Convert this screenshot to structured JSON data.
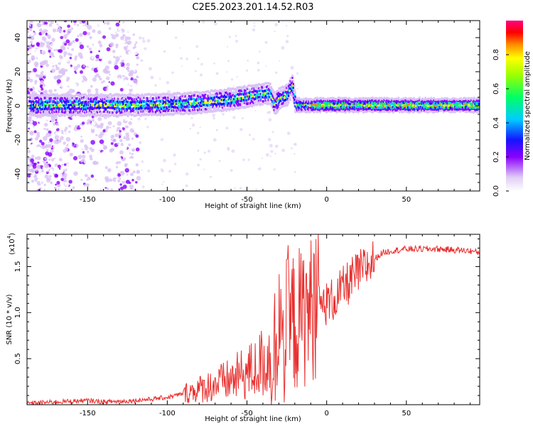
{
  "title": "C2E5.2023.201.14.52.R03",
  "colorbar": {
    "label": "Normalized spectral amplitude",
    "ticks": [
      "0.0",
      "0.2",
      "0.4",
      "0.6",
      "0.8"
    ],
    "tick_values": [
      0.0,
      0.2,
      0.4,
      0.6,
      0.8
    ],
    "range": [
      0,
      1
    ]
  },
  "chart_data": [
    {
      "type": "heatmap",
      "xlabel": "Height of straight line (km)",
      "ylabel": "Frequency (Hz)",
      "xlim": [
        -188,
        96
      ],
      "ylim": [
        -50,
        50
      ],
      "x_ticks": [
        -150,
        -100,
        -50,
        0,
        50
      ],
      "x_tick_labels": [
        "-150",
        "-100",
        "-50",
        "0",
        "50"
      ],
      "y_ticks": [
        -40,
        -20,
        0,
        20,
        40
      ],
      "y_tick_labels": [
        "-40",
        "-20",
        "0",
        "20",
        "40"
      ],
      "ridge": {
        "description_x": [
          -185,
          -150,
          -120,
          -100,
          -80,
          -60,
          -45,
          -36,
          -33,
          -30,
          -25,
          -22,
          -20,
          0,
          50,
          95
        ],
        "frequency_hz": [
          0,
          0,
          0,
          0.5,
          1.5,
          3.5,
          6.0,
          7.0,
          0.5,
          4.0,
          6.0,
          12.0,
          0,
          0,
          0,
          0
        ]
      }
    },
    {
      "type": "line",
      "xlabel": "Height of straight line (km)",
      "ylabel": "SNR (10 * v/v)",
      "multiplier_label": "(x10",
      "multiplier_exp": "4",
      "xlim": [
        -188,
        96
      ],
      "ylim": [
        0,
        18500
      ],
      "x_ticks": [
        -150,
        -100,
        -50,
        0,
        50
      ],
      "x_tick_labels": [
        "-150",
        "-100",
        "-50",
        "0",
        "50"
      ],
      "y_ticks": [
        5000,
        10000,
        15000
      ],
      "y_tick_labels": [
        "0.5",
        "1.0",
        "1.5"
      ],
      "line_color": "#e8302e",
      "series": [
        {
          "x": [
            -188,
            -170,
            -150,
            -140,
            -125,
            -110,
            -100,
            -90,
            -80,
            -70,
            -60,
            -50,
            -45,
            -40,
            -35,
            -30,
            -25,
            -20,
            -15,
            -10,
            -5,
            0,
            5,
            10,
            15,
            20,
            25,
            30,
            35,
            40,
            50,
            60,
            70,
            80,
            90,
            96
          ],
          "values": [
            150,
            300,
            450,
            300,
            400,
            600,
            800,
            1200,
            1700,
            2200,
            2700,
            3500,
            3800,
            4600,
            5200,
            6500,
            8200,
            9000,
            9600,
            10500,
            10700,
            11000,
            11500,
            12500,
            13500,
            14300,
            15000,
            15800,
            16500,
            16700,
            16900,
            16900,
            16900,
            16800,
            16700,
            16500
          ]
        }
      ]
    }
  ]
}
